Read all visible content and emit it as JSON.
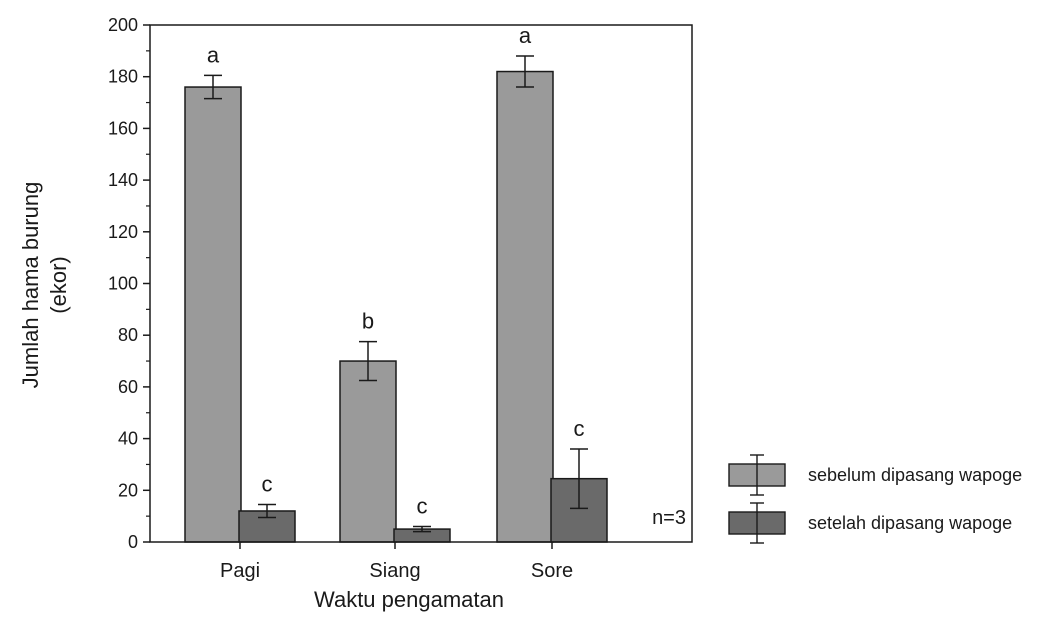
{
  "chart_data": {
    "type": "bar",
    "categories": [
      "Pagi",
      "Siang",
      "Sore"
    ],
    "series": [
      {
        "name": "sebelum dipasang wapoge",
        "color": "#9a9a9a",
        "values": [
          176,
          70,
          182
        ],
        "errors": [
          4.5,
          7.5,
          6
        ],
        "letters": [
          "a",
          "b",
          "a"
        ]
      },
      {
        "name": "setelah dipasang wapoge",
        "color": "#6a6a6a",
        "values": [
          12,
          5,
          24.5
        ],
        "errors": [
          2.5,
          1,
          11.5
        ],
        "letters": [
          "c",
          "c",
          "c"
        ]
      }
    ],
    "xlabel": "Waktu pengamatan",
    "ylabel_lines": [
      "Jumlah hama burung",
      "(ekor)"
    ],
    "ylim": [
      0,
      200
    ],
    "yticks": [
      0,
      20,
      40,
      60,
      80,
      100,
      120,
      140,
      160,
      180,
      200
    ],
    "annotation": "n=3",
    "legend_position": "bottom-right, outside plot"
  }
}
